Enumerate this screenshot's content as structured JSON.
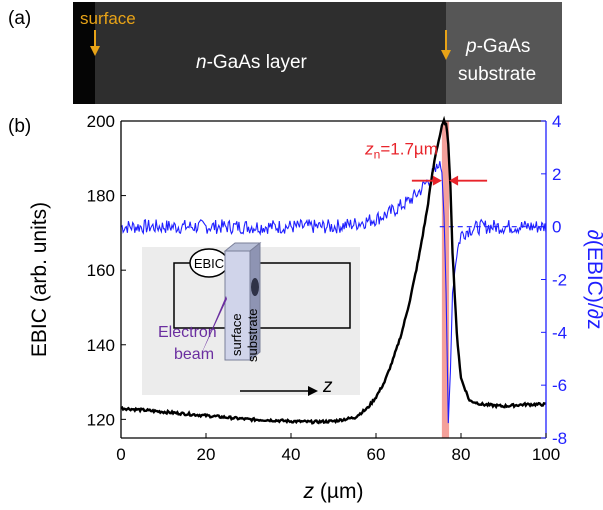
{
  "panel_a": {
    "label": "(a)",
    "surface_label": "surface",
    "layer_label_italic": "n",
    "layer_label_rest": "-GaAs layer",
    "substrate_label_italic": "p",
    "substrate_label_line1_rest": "-GaAs",
    "substrate_label_line2": "substrate",
    "arrow_color": "#e8a317"
  },
  "panel_b_label": "(b)",
  "chart_data": {
    "type": "line",
    "xlabel_italic": "z",
    "xlabel_rest": " (µm)",
    "ylabel": "EBIC (arb. units)",
    "y2label": "∂(EBIC)/∂z",
    "xlim": [
      0,
      100
    ],
    "ylim": [
      115,
      200
    ],
    "y2lim": [
      -8,
      4
    ],
    "x_ticks": [
      "0",
      "20",
      "40",
      "60",
      "80",
      "100"
    ],
    "y_ticks": [
      "120",
      "140",
      "160",
      "180",
      "200"
    ],
    "y2_ticks": [
      "-8",
      "-6",
      "-4",
      "-2",
      "0",
      "2",
      "4"
    ],
    "colors": {
      "ebic": "#000000",
      "derivative": "#1f1fff",
      "highlight": "#f4a09a",
      "annotation": "#e8242b"
    },
    "ebic_series": {
      "x": [
        0,
        5,
        10,
        15,
        20,
        25,
        30,
        35,
        40,
        45,
        50,
        55,
        58,
        60,
        62,
        64,
        66,
        68,
        70,
        72,
        73,
        74,
        75,
        75.5,
        76,
        76.5,
        77,
        77.5,
        78,
        79,
        80,
        82,
        85,
        90,
        95,
        100
      ],
      "y": [
        123,
        122.5,
        122,
        121.5,
        121,
        120.5,
        120,
        119.8,
        119.5,
        119.3,
        119.5,
        120.5,
        123,
        126,
        130,
        136,
        143,
        152,
        163,
        176,
        184,
        191,
        196,
        198.5,
        200,
        199,
        194,
        183,
        165,
        143,
        131,
        125,
        124,
        123.5,
        124,
        124
      ]
    },
    "derivative_series": {
      "x": [
        0,
        10,
        20,
        30,
        40,
        50,
        55,
        60,
        63,
        66,
        68,
        70,
        72,
        74,
        75,
        75.5,
        76,
        76.5,
        77,
        77.5,
        78,
        79,
        80,
        82,
        85,
        90,
        100
      ],
      "y": [
        0,
        0,
        0,
        0,
        0,
        0,
        0.1,
        0.3,
        0.5,
        0.8,
        1.0,
        1.3,
        1.7,
        2.1,
        2.4,
        2.1,
        0.5,
        -2.5,
        -7.5,
        -5.5,
        -2.5,
        -1,
        -0.3,
        -0.1,
        0,
        0,
        0
      ]
    },
    "dashed_zero_from_x": 75,
    "highlight_band_x": [
      75.5,
      77.2
    ],
    "annotation": {
      "symbol": "z",
      "subscript": "n",
      "value": "=1.7µm",
      "x_start": 75.5,
      "x_end": 77.2,
      "y": 184
    },
    "inset": {
      "meter_label": "EBIC",
      "surface_label": "surface",
      "substrate_label": "substrate",
      "beam_label_line1": "Electron",
      "beam_label_line2": "beam",
      "axis_label": "z",
      "beam_color": "#6b2fa0"
    }
  }
}
